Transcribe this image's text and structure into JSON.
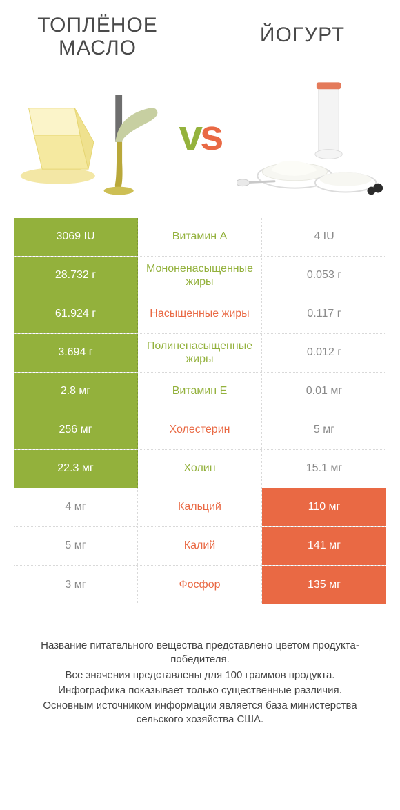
{
  "colors": {
    "green": "#93b13c",
    "orange": "#e96944",
    "text": "#4a4a4a",
    "footer_text": "#444444",
    "white": "#ffffff"
  },
  "left_title": "ТОПЛЁНОЕ МАСЛО",
  "right_title": "ЙОГУРТ",
  "vs_v": "v",
  "vs_s": "s",
  "rows": [
    {
      "label": "Витамин A",
      "left": "3069 IU",
      "right": "4 IU",
      "winner": "left"
    },
    {
      "label": "Мононенасыщенные жиры",
      "left": "28.732 г",
      "right": "0.053 г",
      "winner": "left"
    },
    {
      "label": "Насыщенные жиры",
      "left": "61.924 г",
      "right": "0.117 г",
      "winner": "right_color_label_only",
      "label_side": "orange",
      "left_bg": "left",
      "right_bg": "none",
      "special": true
    },
    {
      "label": "Полиненасыщенные жиры",
      "left": "3.694 г",
      "right": "0.012 г",
      "winner": "left"
    },
    {
      "label": "Витамин E",
      "left": "2.8 мг",
      "right": "0.01 мг",
      "winner": "left"
    },
    {
      "label": "Холестерин",
      "left": "256 мг",
      "right": "5 мг",
      "winner": "right_color_label_only",
      "special": true
    },
    {
      "label": "Холин",
      "left": "22.3 мг",
      "right": "15.1 мг",
      "winner": "left"
    },
    {
      "label": "Кальций",
      "left": "4 мг",
      "right": "110 мг",
      "winner": "right"
    },
    {
      "label": "Калий",
      "left": "5 мг",
      "right": "141 мг",
      "winner": "right"
    },
    {
      "label": "Фосфор",
      "left": "3 мг",
      "right": "135 мг",
      "winner": "right"
    }
  ],
  "row_render": [
    {
      "left_bg": "green",
      "mid": "green",
      "right_bg": "none"
    },
    {
      "left_bg": "green",
      "mid": "green",
      "right_bg": "none"
    },
    {
      "left_bg": "green",
      "mid": "orange",
      "right_bg": "none"
    },
    {
      "left_bg": "green",
      "mid": "green",
      "right_bg": "none"
    },
    {
      "left_bg": "green",
      "mid": "green",
      "right_bg": "none"
    },
    {
      "left_bg": "green",
      "mid": "orange",
      "right_bg": "none"
    },
    {
      "left_bg": "green",
      "mid": "green",
      "right_bg": "none"
    },
    {
      "left_bg": "none",
      "mid": "orange",
      "right_bg": "orange"
    },
    {
      "left_bg": "none",
      "mid": "orange",
      "right_bg": "orange"
    },
    {
      "left_bg": "none",
      "mid": "orange",
      "right_bg": "orange"
    }
  ],
  "left_plain_text_color": "#8a8a8a",
  "right_plain_text_color": "#8a8a8a",
  "footer": [
    "Название питательного вещества представлено цветом продукта-победителя.",
    "Все значения представлены для 100 граммов продукта.",
    "Инфографика показывает только существенные различия.",
    "Основным источником информации является база министерства сельского хозяйства США."
  ]
}
